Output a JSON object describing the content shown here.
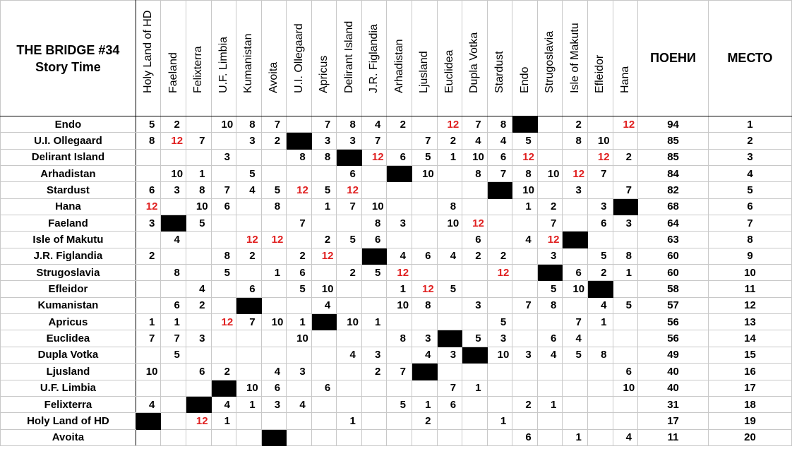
{
  "title": [
    "THE BRIDGE #34",
    "Story Time"
  ],
  "headers": {
    "points": "ПОЕНИ",
    "place": "МЕСТО"
  },
  "colors": {
    "twelve_points": "#e02020",
    "self_cell": "#000000"
  },
  "columns": [
    "Holy Land of HD",
    "Faeland",
    "Felixterra",
    "U.F. Limbia",
    "Kumanistan",
    "Avoita",
    "U.I. Ollegaard",
    "Apricus",
    "Delirant Island",
    "J.R. Figlandia",
    "Arhadistan",
    "Ljusland",
    "Euclidea",
    "Dupla Votka",
    "Stardust",
    "Endo",
    "Strugoslavia",
    "Isle of Makutu",
    "Efleidor",
    "Hana"
  ],
  "rows": [
    {
      "name": "Endo",
      "scores": [
        "5",
        "2",
        "",
        "10",
        "8",
        "7",
        "",
        "7",
        "8",
        "4",
        "2",
        "",
        "12",
        "7",
        "8",
        "X",
        "",
        "2",
        "",
        "12"
      ],
      "points": "94",
      "place": "1"
    },
    {
      "name": "U.I. Ollegaard",
      "scores": [
        "8",
        "12",
        "7",
        "",
        "3",
        "2",
        "X",
        "3",
        "3",
        "7",
        "",
        "7",
        "2",
        "4",
        "4",
        "5",
        "",
        "8",
        "10",
        ""
      ],
      "points": "85",
      "place": "2"
    },
    {
      "name": "Delirant Island",
      "scores": [
        "",
        "",
        "",
        "3",
        "",
        "",
        "8",
        "8",
        "X",
        "12",
        "6",
        "5",
        "1",
        "10",
        "6",
        "12",
        "",
        "",
        "12",
        "2"
      ],
      "points": "85",
      "place": "3"
    },
    {
      "name": "Arhadistan",
      "scores": [
        "",
        "10",
        "1",
        "",
        "5",
        "",
        "",
        "",
        "6",
        "",
        "X",
        "10",
        "",
        "8",
        "7",
        "8",
        "10",
        "12",
        "7",
        ""
      ],
      "points": "84",
      "place": "4"
    },
    {
      "name": "Stardust",
      "scores": [
        "6",
        "3",
        "8",
        "7",
        "4",
        "5",
        "12",
        "5",
        "12",
        "",
        "",
        "",
        "",
        "",
        "X",
        "10",
        "",
        "3",
        "",
        "7"
      ],
      "points": "82",
      "place": "5"
    },
    {
      "name": "Hana",
      "scores": [
        "12",
        "",
        "10",
        "6",
        "",
        "8",
        "",
        "1",
        "7",
        "10",
        "",
        "",
        "8",
        "",
        "",
        "1",
        "2",
        "",
        "3",
        "X"
      ],
      "points": "68",
      "place": "6"
    },
    {
      "name": "Faeland",
      "scores": [
        "3",
        "X",
        "5",
        "",
        "",
        "",
        "7",
        "",
        "",
        "8",
        "3",
        "",
        "10",
        "12",
        "",
        "",
        "7",
        "",
        "6",
        "3"
      ],
      "points": "64",
      "place": "7"
    },
    {
      "name": "Isle of Makutu",
      "scores": [
        "",
        "4",
        "",
        "",
        "12",
        "12",
        "",
        "2",
        "5",
        "6",
        "",
        "",
        "",
        "6",
        "",
        "4",
        "12",
        "X",
        "",
        ""
      ],
      "points": "63",
      "place": "8"
    },
    {
      "name": "J.R. Figlandia",
      "scores": [
        "2",
        "",
        "",
        "8",
        "2",
        "",
        "2",
        "12",
        "",
        "X",
        "4",
        "6",
        "4",
        "2",
        "2",
        "",
        "3",
        "",
        "5",
        "8"
      ],
      "points": "60",
      "place": "9"
    },
    {
      "name": "Strugoslavia",
      "scores": [
        "",
        "8",
        "",
        "5",
        "",
        "1",
        "6",
        "",
        "2",
        "5",
        "12",
        "",
        "",
        "",
        "12",
        "",
        "X",
        "6",
        "2",
        "1"
      ],
      "points": "60",
      "place": "10"
    },
    {
      "name": "Efleidor",
      "scores": [
        "",
        "",
        "4",
        "",
        "6",
        "",
        "5",
        "10",
        "",
        "",
        "1",
        "12",
        "5",
        "",
        "",
        "",
        "5",
        "10",
        "X",
        ""
      ],
      "points": "58",
      "place": "11"
    },
    {
      "name": "Kumanistan",
      "scores": [
        "",
        "6",
        "2",
        "",
        "X",
        "",
        "",
        "4",
        "",
        "",
        "10",
        "8",
        "",
        "3",
        "",
        "7",
        "8",
        "",
        "4",
        "5"
      ],
      "points": "57",
      "place": "12"
    },
    {
      "name": "Apricus",
      "scores": [
        "1",
        "1",
        "",
        "12",
        "7",
        "10",
        "1",
        "X",
        "10",
        "1",
        "",
        "",
        "",
        "",
        "5",
        "",
        "",
        "7",
        "1",
        ""
      ],
      "points": "56",
      "place": "13"
    },
    {
      "name": "Euclidea",
      "scores": [
        "7",
        "7",
        "3",
        "",
        "",
        "",
        "10",
        "",
        "",
        "",
        "8",
        "3",
        "X",
        "5",
        "3",
        "",
        "6",
        "4",
        "",
        ""
      ],
      "points": "56",
      "place": "14"
    },
    {
      "name": "Dupla Votka",
      "scores": [
        "",
        "5",
        "",
        "",
        "",
        "",
        "",
        "",
        "4",
        "3",
        "",
        "4",
        "3",
        "X",
        "10",
        "3",
        "4",
        "5",
        "8",
        ""
      ],
      "points": "49",
      "place": "15"
    },
    {
      "name": "Ljusland",
      "scores": [
        "10",
        "",
        "6",
        "2",
        "",
        "4",
        "3",
        "",
        "",
        "2",
        "7",
        "X",
        "",
        "",
        "",
        "",
        "",
        "",
        "",
        "6"
      ],
      "points": "40",
      "place": "16"
    },
    {
      "name": "U.F. Limbia",
      "scores": [
        "",
        "",
        "",
        "X",
        "10",
        "6",
        "",
        "6",
        "",
        "",
        "",
        "",
        "7",
        "1",
        "",
        "",
        "",
        "",
        "",
        "10"
      ],
      "points": "40",
      "place": "17"
    },
    {
      "name": "Felixterra",
      "scores": [
        "4",
        "",
        "X",
        "4",
        "1",
        "3",
        "4",
        "",
        "",
        "",
        "5",
        "1",
        "6",
        "",
        "",
        "2",
        "1",
        "",
        "",
        ""
      ],
      "points": "31",
      "place": "18"
    },
    {
      "name": "Holy Land of HD",
      "scores": [
        "X",
        "",
        "12",
        "1",
        "",
        "",
        "",
        "",
        "1",
        "",
        "",
        "2",
        "",
        "",
        "1",
        "",
        "",
        "",
        "",
        ""
      ],
      "points": "17",
      "place": "19"
    },
    {
      "name": "Avoita",
      "scores": [
        "",
        "",
        "",
        "",
        "",
        "X",
        "",
        "",
        "",
        "",
        "",
        "",
        "",
        "",
        "",
        "6",
        "",
        "1",
        "",
        "4"
      ],
      "points": "11",
      "place": "20"
    }
  ]
}
